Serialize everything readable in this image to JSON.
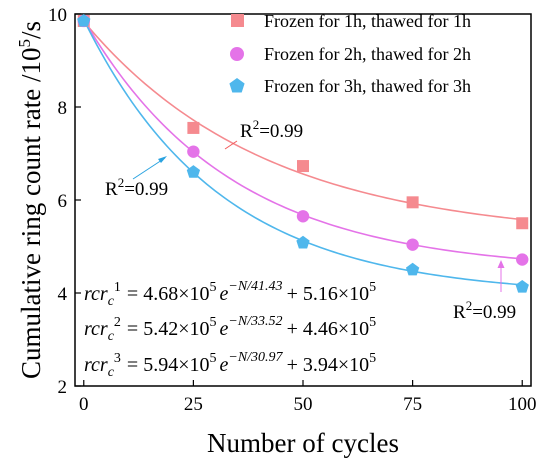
{
  "chart_data": {
    "type": "scatter",
    "xlabel": "Number of cycles",
    "ylabel": "Cumulative ring count  rate /10",
    "ylabel_sup": "5",
    "ylabel_tail": "/s",
    "xlim": [
      -2,
      102
    ],
    "ylim": [
      2,
      10
    ],
    "xticks": [
      "0",
      "25",
      "50",
      "75",
      "100"
    ],
    "yticks": [
      "2",
      "4",
      "6",
      "8",
      "10"
    ],
    "legend_position": "top-right",
    "series": [
      {
        "name": "Frozen for 1h, thawed for 1h",
        "color": "#f58a8f",
        "marker": "square",
        "x": [
          0,
          25,
          50,
          75,
          100
        ],
        "y": [
          9.85,
          7.55,
          6.73,
          5.95,
          5.5
        ],
        "fit": {
          "A": 4.68,
          "tau": 41.43,
          "C": 5.16
        }
      },
      {
        "name": "Frozen for 2h, thawed for 2h",
        "color": "#e473e8",
        "marker": "circle",
        "x": [
          0,
          25,
          50,
          75,
          100
        ],
        "y": [
          9.85,
          7.04,
          5.65,
          5.04,
          4.72
        ],
        "fit": {
          "A": 5.42,
          "tau": 33.52,
          "C": 4.46
        }
      },
      {
        "name": "Frozen for 3h, thawed for 3h",
        "color": "#4fb7ec",
        "marker": "pentagon",
        "x": [
          0,
          25,
          50,
          75,
          100
        ],
        "y": [
          9.85,
          6.6,
          5.08,
          4.5,
          4.13
        ],
        "fit": {
          "A": 5.94,
          "tau": 30.97,
          "C": 3.94
        }
      }
    ],
    "annotations": [
      {
        "base": "R",
        "sup": "2",
        "tail": "=0.99"
      },
      {
        "base": "R",
        "sup": "2",
        "tail": "=0.99"
      },
      {
        "base": "R",
        "sup": "2",
        "tail": "=0.99"
      }
    ],
    "equations": [
      {
        "lhs_var": "rcr",
        "lhs_sub": "c",
        "lhs_sup": "1",
        "coef": "4.68×10",
        "coef_exp": "5",
        "e": "e",
        "exp": "−N/41.43",
        "plus": "+ 5.16×10",
        "plus_exp": "5"
      },
      {
        "lhs_var": "rcr",
        "lhs_sub": "c",
        "lhs_sup": "2",
        "coef": "5.42×10",
        "coef_exp": "5",
        "e": "e",
        "exp": "−N/33.52",
        "plus": "+ 4.46×10",
        "plus_exp": "5"
      },
      {
        "lhs_var": "rcr",
        "lhs_sub": "c",
        "lhs_sup": "3",
        "coef": "5.94×10",
        "coef_exp": "5",
        "e": "e",
        "exp": "−N/30.97",
        "plus": "+ 3.94×10",
        "plus_exp": "5"
      }
    ]
  }
}
